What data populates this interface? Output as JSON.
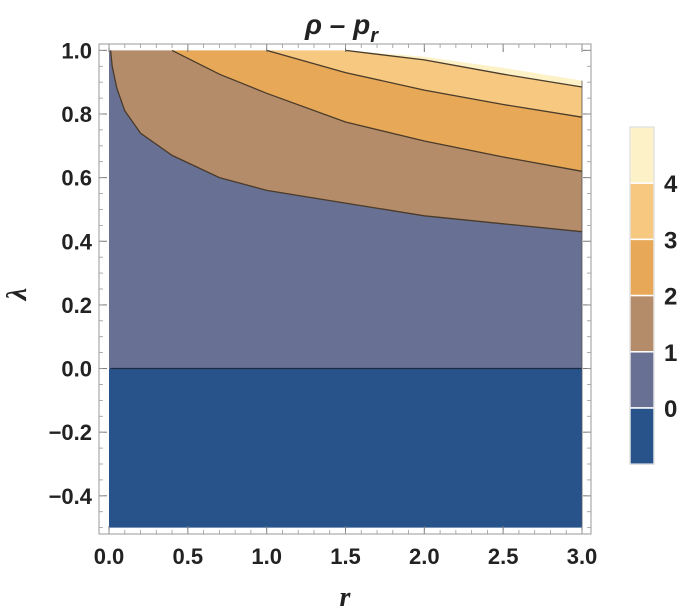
{
  "chart_data": {
    "type": "contour",
    "title": {
      "base": "ρ – p",
      "subscript": "r"
    },
    "xlabel": "r",
    "ylabel": "λ",
    "xlim": [
      0.0,
      3.0
    ],
    "ylim": [
      -0.5,
      1.0
    ],
    "plot_ylim": [
      -0.52,
      1.02
    ],
    "x_ticks": [
      0.0,
      0.5,
      1.0,
      1.5,
      2.0,
      2.5,
      3.0
    ],
    "x_tick_labels": [
      "0.0",
      "0.5",
      "1.0",
      "1.5",
      "2.0",
      "2.5",
      "3.0"
    ],
    "y_ticks": [
      -0.4,
      -0.2,
      0.0,
      0.2,
      0.4,
      0.6,
      0.8,
      1.0
    ],
    "y_tick_labels": [
      "-0.4",
      "-0.2",
      "0.0",
      "0.2",
      "0.4",
      "0.6",
      "0.8",
      "1.0"
    ],
    "contour_levels": [
      0,
      1,
      2,
      3,
      4
    ],
    "band_colors": [
      "#28538a",
      "#687093",
      "#b58c6a",
      "#e7a857",
      "#f6c880",
      "#fdf1c8"
    ],
    "contours": [
      {
        "level": 0,
        "points": [
          [
            0.01,
            0.0
          ],
          [
            3.0,
            0.0
          ]
        ]
      },
      {
        "level": 1,
        "points": [
          [
            0.01,
            1.0
          ],
          [
            0.02,
            0.95
          ],
          [
            0.05,
            0.88
          ],
          [
            0.1,
            0.81
          ],
          [
            0.2,
            0.74
          ],
          [
            0.4,
            0.67
          ],
          [
            0.7,
            0.6
          ],
          [
            1.0,
            0.56
          ],
          [
            1.5,
            0.52
          ],
          [
            2.0,
            0.48
          ],
          [
            2.5,
            0.455
          ],
          [
            3.0,
            0.43
          ]
        ]
      },
      {
        "level": 2,
        "points": [
          [
            0.4,
            1.0
          ],
          [
            0.7,
            0.925
          ],
          [
            1.0,
            0.865
          ],
          [
            1.5,
            0.775
          ],
          [
            2.0,
            0.715
          ],
          [
            2.5,
            0.665
          ],
          [
            3.0,
            0.62
          ]
        ]
      },
      {
        "level": 3,
        "points": [
          [
            1.0,
            1.0
          ],
          [
            1.5,
            0.93
          ],
          [
            2.0,
            0.875
          ],
          [
            2.5,
            0.83
          ],
          [
            3.0,
            0.79
          ]
        ]
      },
      {
        "level": 4,
        "points": [
          [
            1.5,
            1.0
          ],
          [
            2.0,
            0.97
          ],
          [
            2.5,
            0.925
          ],
          [
            3.0,
            0.885
          ]
        ]
      }
    ],
    "domain_note": "region above upper boundary at r=3.0 is undefined (white)",
    "upper_boundary": [
      [
        0.0,
        1.0
      ],
      [
        1.5,
        1.0
      ],
      [
        2.0,
        0.98
      ],
      [
        2.5,
        0.945
      ],
      [
        3.0,
        0.905
      ]
    ],
    "legend": {
      "position": "right",
      "bands": [
        "#fdf1c8",
        "#f6c880",
        "#e7a857",
        "#b58c6a",
        "#687093",
        "#28538a"
      ],
      "labels": [
        "4",
        "3",
        "2",
        "1",
        "0"
      ]
    }
  }
}
